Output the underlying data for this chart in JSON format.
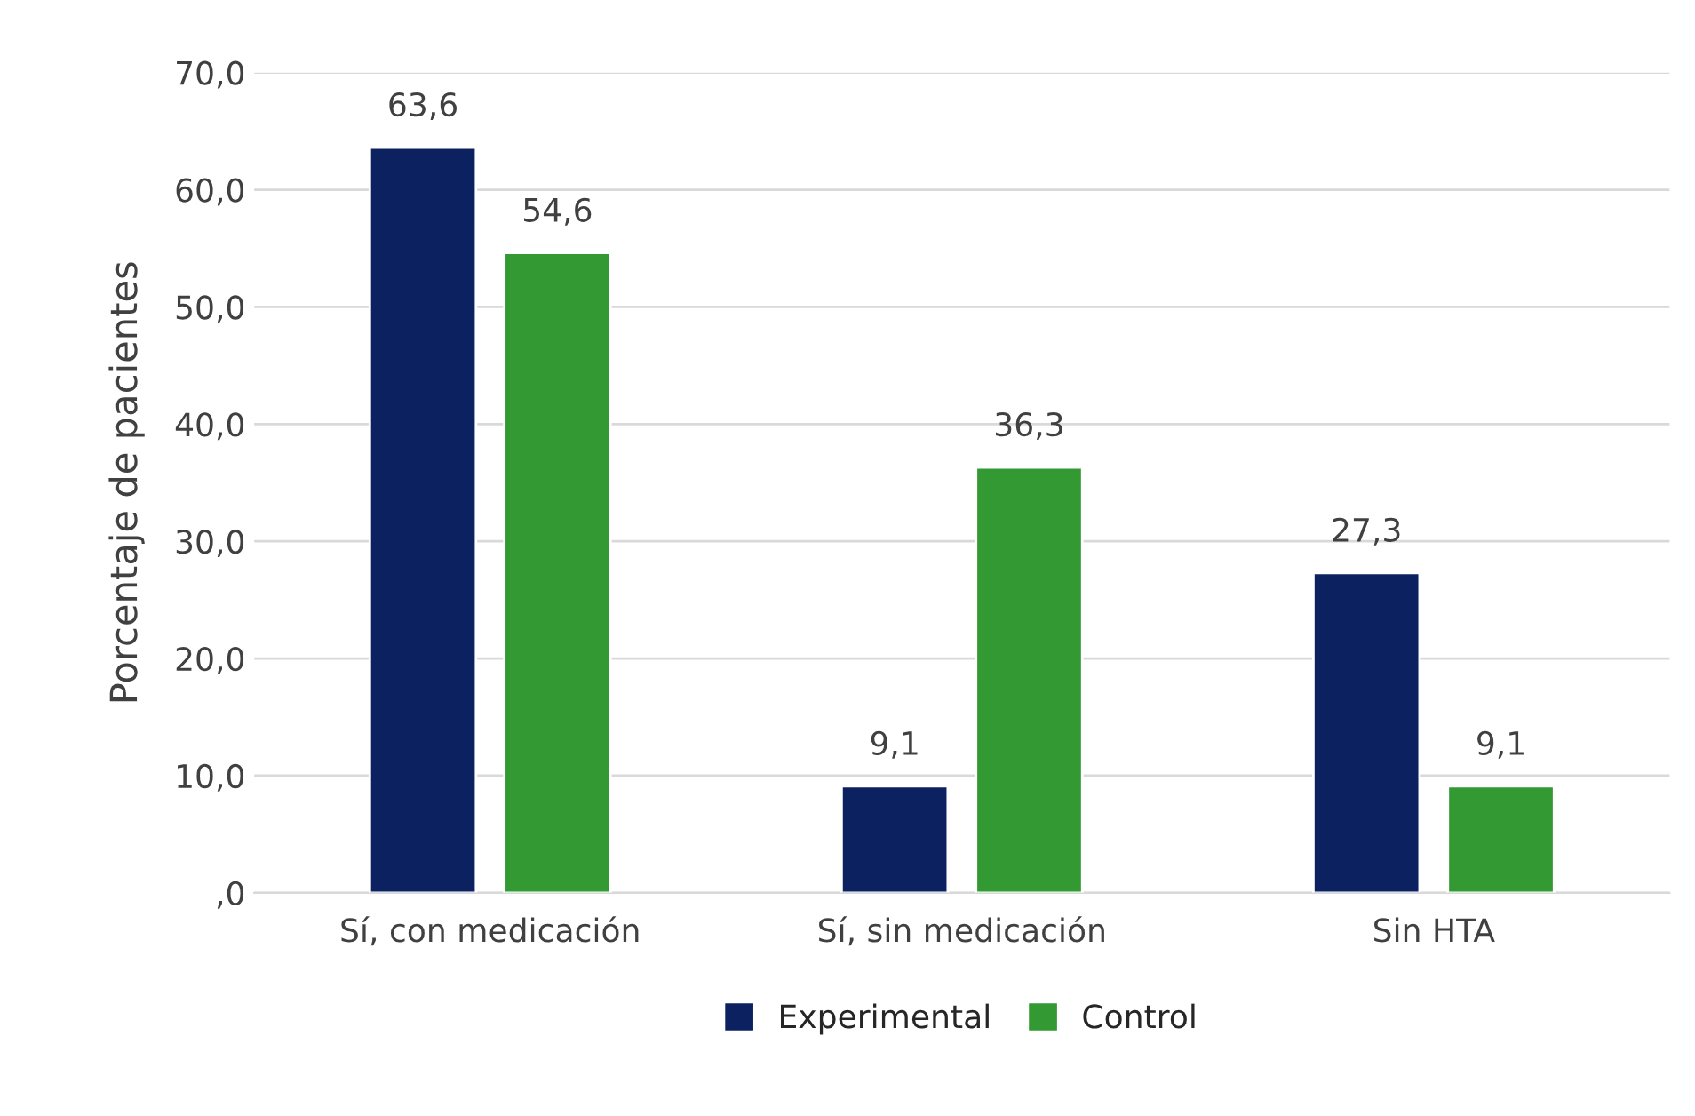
{
  "chart_data": {
    "type": "bar",
    "ylabel": "Porcentaje de pacientes",
    "categories": [
      "Sí, con medicación",
      "Sí, sin medicación",
      "Sin HTA"
    ],
    "series": [
      {
        "name": "Experimental",
        "color": "#0c2260",
        "values": [
          63.6,
          9.1,
          27.3
        ],
        "value_labels": [
          "63,6",
          "9,1",
          "27,3"
        ]
      },
      {
        "name": "Control",
        "color": "#339933",
        "values": [
          54.6,
          36.3,
          9.1
        ],
        "value_labels": [
          "54,6",
          "36,3",
          "9,1"
        ]
      }
    ],
    "ylim": [
      0,
      70
    ],
    "yticks": [
      {
        "value": 0,
        "label": ",0"
      },
      {
        "value": 10,
        "label": "10,0"
      },
      {
        "value": 20,
        "label": "20,0"
      },
      {
        "value": 30,
        "label": "30,0"
      },
      {
        "value": 40,
        "label": "40,0"
      },
      {
        "value": 50,
        "label": "50,0"
      },
      {
        "value": 60,
        "label": "60,0"
      },
      {
        "value": 70,
        "label": "70,0"
      }
    ],
    "grid": "y",
    "legend": "bottom"
  }
}
